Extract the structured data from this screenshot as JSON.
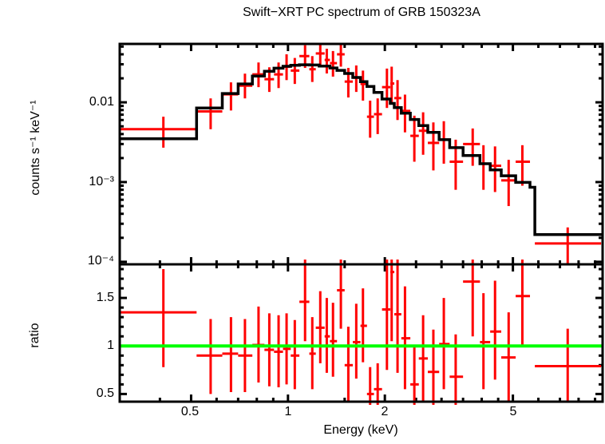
{
  "colors": {
    "data": "#ff0000",
    "model": "#000000",
    "reference_line": "#00ff00",
    "axes": "#000000",
    "background": "#ffffff"
  },
  "point_format": [
    "E_keV",
    "E_lo_keV",
    "E_hi_keV",
    "value",
    "err_lo",
    "err_hi"
  ],
  "chart_data": [
    {
      "name": "spectrum-panel",
      "type": "scatter",
      "title": "Swift−XRT PC spectrum of GRB 150323A",
      "ylabel": "counts s⁻¹ keV⁻¹",
      "xscale": "log",
      "yscale": "log",
      "grid": false,
      "legend": false,
      "xlim": [
        0.3,
        9.5
      ],
      "ylim": [
        9.3e-05,
        0.054
      ],
      "yticks": [
        {
          "value": 0.01,
          "label": "0.01"
        },
        {
          "value": 0.001,
          "label": "10⁻³"
        },
        {
          "value": 0.0001,
          "label": "10⁻⁴"
        }
      ],
      "yticks_minor": [
        0.02,
        0.03,
        0.04,
        0.05,
        0.002,
        0.003,
        0.004,
        0.005,
        0.006,
        0.007,
        0.008,
        0.009,
        0.0002,
        0.0003,
        0.0004,
        0.0005,
        0.0006,
        0.0007,
        0.0008,
        0.0009
      ],
      "series": [
        {
          "name": "observed-counts",
          "style": "cross-errorbar",
          "color": "#ff0000",
          "points": [
            [
              0.41,
              0.3,
              0.52,
              0.0046,
              0.0027,
              0.0066
            ],
            [
              0.575,
              0.52,
              0.625,
              0.0077,
              0.0046,
              0.0112
            ],
            [
              0.665,
              0.625,
              0.7,
              0.0126,
              0.0079,
              0.0178
            ],
            [
              0.735,
              0.7,
              0.775,
              0.0162,
              0.0112,
              0.0229
            ],
            [
              0.81,
              0.775,
              0.845,
              0.0224,
              0.0155,
              0.0316
            ],
            [
              0.875,
              0.845,
              0.905,
              0.0195,
              0.0135,
              0.0275
            ],
            [
              0.935,
              0.905,
              0.965,
              0.0224,
              0.0151,
              0.0316
            ],
            [
              0.99,
              0.965,
              1.02,
              0.028,
              0.019,
              0.04
            ],
            [
              1.05,
              1.02,
              1.085,
              0.025,
              0.017,
              0.036
            ],
            [
              1.13,
              1.085,
              1.165,
              0.038,
              0.027,
              0.052
            ],
            [
              1.19,
              1.165,
              1.22,
              0.026,
              0.018,
              0.038
            ],
            [
              1.26,
              1.22,
              1.3,
              0.041,
              0.029,
              0.0545
            ],
            [
              1.32,
              1.3,
              1.35,
              0.034,
              0.023,
              0.047
            ],
            [
              1.38,
              1.35,
              1.42,
              0.031,
              0.021,
              0.044
            ],
            [
              1.46,
              1.42,
              1.5,
              0.04,
              0.028,
              0.0535
            ],
            [
              1.54,
              1.5,
              1.59,
              0.0182,
              0.0115,
              0.027
            ],
            [
              1.63,
              1.59,
              1.68,
              0.0204,
              0.0135,
              0.029
            ],
            [
              1.71,
              1.68,
              1.76,
              0.017,
              0.0105,
              0.025
            ],
            [
              1.8,
              1.76,
              1.85,
              0.0066,
              0.0036,
              0.0105
            ],
            [
              1.9,
              1.85,
              1.96,
              0.0071,
              0.004,
              0.0112
            ],
            [
              2.03,
              1.96,
              2.08,
              0.0155,
              0.0085,
              0.0265
            ],
            [
              2.1,
              2.08,
              2.14,
              0.0172,
              0.0095,
              0.028
            ],
            [
              2.19,
              2.14,
              2.25,
              0.0113,
              0.006,
              0.019
            ],
            [
              2.31,
              2.25,
              2.4,
              0.0078,
              0.0042,
              0.0125
            ],
            [
              2.47,
              2.4,
              2.55,
              0.0038,
              0.0018,
              0.0068
            ],
            [
              2.63,
              2.55,
              2.72,
              0.0044,
              0.0022,
              0.0075
            ],
            [
              2.83,
              2.72,
              2.95,
              0.0031,
              0.0014,
              0.0056
            ],
            [
              3.05,
              2.95,
              3.18,
              0.0034,
              0.0017,
              0.0058
            ],
            [
              3.32,
              3.18,
              3.5,
              0.0018,
              0.0008,
              0.0034
            ],
            [
              3.75,
              3.5,
              3.95,
              0.003,
              0.0016,
              0.0047
            ],
            [
              4.05,
              3.95,
              4.25,
              0.0017,
              0.0008,
              0.0029
            ],
            [
              4.4,
              4.25,
              4.6,
              0.0016,
              0.00075,
              0.0028
            ],
            [
              4.85,
              4.6,
              5.1,
              0.00105,
              0.0005,
              0.0019
            ],
            [
              5.35,
              5.1,
              5.65,
              0.0018,
              0.0009,
              0.0029
            ],
            [
              7.4,
              5.85,
              9.4,
              0.00017,
              9e-05,
              0.00027
            ]
          ]
        },
        {
          "name": "folded-model",
          "style": "step",
          "color": "#000000",
          "step_format": [
            "E_lo_keV",
            "E_hi_keV",
            "value"
          ],
          "steps": [
            [
              0.3,
              0.52,
              0.0035
            ],
            [
              0.52,
              0.625,
              0.0085
            ],
            [
              0.625,
              0.7,
              0.0129
            ],
            [
              0.7,
              0.775,
              0.017
            ],
            [
              0.775,
              0.845,
              0.0213
            ],
            [
              0.845,
              0.905,
              0.0245
            ],
            [
              0.905,
              0.965,
              0.0268
            ],
            [
              0.965,
              1.02,
              0.0283
            ],
            [
              1.02,
              1.085,
              0.0292
            ],
            [
              1.085,
              1.165,
              0.0296
            ],
            [
              1.165,
              1.25,
              0.0294
            ],
            [
              1.25,
              1.35,
              0.0285
            ],
            [
              1.35,
              1.42,
              0.027
            ],
            [
              1.42,
              1.5,
              0.0252
            ],
            [
              1.5,
              1.59,
              0.023
            ],
            [
              1.59,
              1.68,
              0.0205
            ],
            [
              1.68,
              1.76,
              0.0182
            ],
            [
              1.76,
              1.85,
              0.0158
            ],
            [
              1.85,
              1.96,
              0.0133
            ],
            [
              1.96,
              2.08,
              0.011
            ],
            [
              2.08,
              2.14,
              0.0097
            ],
            [
              2.14,
              2.25,
              0.0086
            ],
            [
              2.25,
              2.4,
              0.0073
            ],
            [
              2.4,
              2.55,
              0.0061
            ],
            [
              2.55,
              2.72,
              0.0051
            ],
            [
              2.72,
              2.95,
              0.0042
            ],
            [
              2.95,
              3.18,
              0.0034
            ],
            [
              3.18,
              3.5,
              0.0027
            ],
            [
              3.5,
              3.95,
              0.00215
            ],
            [
              3.95,
              4.25,
              0.0017
            ],
            [
              4.25,
              4.6,
              0.00142
            ],
            [
              4.6,
              5.1,
              0.0012
            ],
            [
              5.1,
              5.65,
              0.00099
            ],
            [
              5.65,
              5.85,
              0.00086
            ],
            [
              5.85,
              9.5,
              0.00022
            ]
          ]
        }
      ]
    },
    {
      "name": "ratio-panel",
      "type": "scatter",
      "xlabel": "Energy (keV)",
      "ylabel": "ratio",
      "xscale": "log",
      "yscale": "linear",
      "grid": false,
      "legend": false,
      "xlim": [
        0.3,
        9.5
      ],
      "ylim": [
        0.42,
        1.85
      ],
      "reference_line": 1.0,
      "xticks": [
        {
          "value": 0.5,
          "label": "0.5"
        },
        {
          "value": 1,
          "label": "1"
        },
        {
          "value": 2,
          "label": "2"
        },
        {
          "value": 5,
          "label": "5"
        }
      ],
      "xticks_minor": [
        0.4,
        0.6,
        0.7,
        0.8,
        0.9,
        1.5,
        2.5,
        3,
        3.5,
        4,
        4.5,
        6,
        7,
        8,
        9
      ],
      "yticks": [
        {
          "value": 1.5,
          "label": "1.5"
        },
        {
          "value": 1,
          "label": "1"
        },
        {
          "value": 0.5,
          "label": "0.5"
        }
      ],
      "yticks_minor": [
        0.6,
        0.7,
        0.8,
        0.9,
        1.1,
        1.2,
        1.3,
        1.4,
        1.6,
        1.7,
        1.8
      ],
      "series": [
        {
          "name": "data-to-model-ratio",
          "style": "cross-errorbar",
          "color": "#ff0000",
          "points": [
            [
              0.41,
              0.3,
              0.52,
              1.35,
              0.78,
              1.8
            ],
            [
              0.575,
              0.52,
              0.625,
              0.9,
              0.5,
              1.28
            ],
            [
              0.665,
              0.625,
              0.7,
              0.92,
              0.52,
              1.3
            ],
            [
              0.735,
              0.7,
              0.775,
              0.9,
              0.52,
              1.28
            ],
            [
              0.81,
              0.775,
              0.845,
              1.01,
              0.62,
              1.41
            ],
            [
              0.875,
              0.845,
              0.905,
              0.96,
              0.58,
              1.34
            ],
            [
              0.935,
              0.905,
              0.965,
              0.94,
              0.57,
              1.32
            ],
            [
              0.99,
              0.965,
              1.02,
              0.97,
              0.6,
              1.34
            ],
            [
              1.05,
              1.02,
              1.085,
              0.9,
              0.55,
              1.27
            ],
            [
              1.13,
              1.085,
              1.165,
              1.46,
              1.05,
              1.9
            ],
            [
              1.19,
              1.165,
              1.22,
              0.92,
              0.55,
              1.3
            ],
            [
              1.26,
              1.22,
              1.3,
              1.19,
              0.82,
              1.57
            ],
            [
              1.32,
              1.3,
              1.35,
              1.1,
              0.72,
              1.5
            ],
            [
              1.38,
              1.35,
              1.42,
              1.05,
              0.68,
              1.45
            ],
            [
              1.46,
              1.42,
              1.5,
              1.58,
              1.18,
              2.0
            ],
            [
              1.54,
              1.5,
              1.59,
              0.8,
              0.42,
              1.2
            ],
            [
              1.63,
              1.59,
              1.68,
              1.04,
              0.66,
              1.44
            ],
            [
              1.71,
              1.68,
              1.76,
              1.21,
              0.83,
              1.6
            ],
            [
              1.8,
              1.76,
              1.85,
              0.5,
              0.3,
              0.78
            ],
            [
              1.9,
              1.85,
              1.96,
              0.55,
              0.33,
              0.82
            ],
            [
              2.03,
              1.96,
              2.08,
              1.38,
              0.75,
              1.95
            ],
            [
              2.1,
              2.08,
              2.14,
              1.77,
              1.05,
              2.0
            ],
            [
              2.19,
              2.14,
              2.25,
              1.33,
              0.72,
              1.92
            ],
            [
              2.31,
              2.25,
              2.4,
              1.08,
              0.55,
              1.62
            ],
            [
              2.47,
              2.4,
              2.55,
              0.6,
              0.22,
              1.0
            ],
            [
              2.63,
              2.55,
              2.72,
              0.87,
              0.42,
              1.32
            ],
            [
              2.83,
              2.72,
              2.95,
              0.73,
              0.3,
              1.17
            ],
            [
              3.05,
              2.95,
              3.18,
              1.02,
              0.55,
              1.5
            ],
            [
              3.32,
              3.18,
              3.5,
              0.68,
              0.25,
              1.12
            ],
            [
              3.75,
              3.5,
              3.95,
              1.67,
              1.1,
              2.05
            ],
            [
              4.05,
              3.95,
              4.25,
              1.04,
              0.55,
              1.55
            ],
            [
              4.4,
              4.25,
              4.6,
              1.15,
              0.65,
              1.68
            ],
            [
              4.85,
              4.6,
              5.1,
              0.88,
              0.42,
              1.35
            ],
            [
              5.35,
              5.1,
              5.65,
              1.52,
              1.0,
              2.05
            ],
            [
              7.4,
              5.85,
              9.4,
              0.79,
              0.42,
              1.18
            ]
          ]
        }
      ]
    }
  ]
}
